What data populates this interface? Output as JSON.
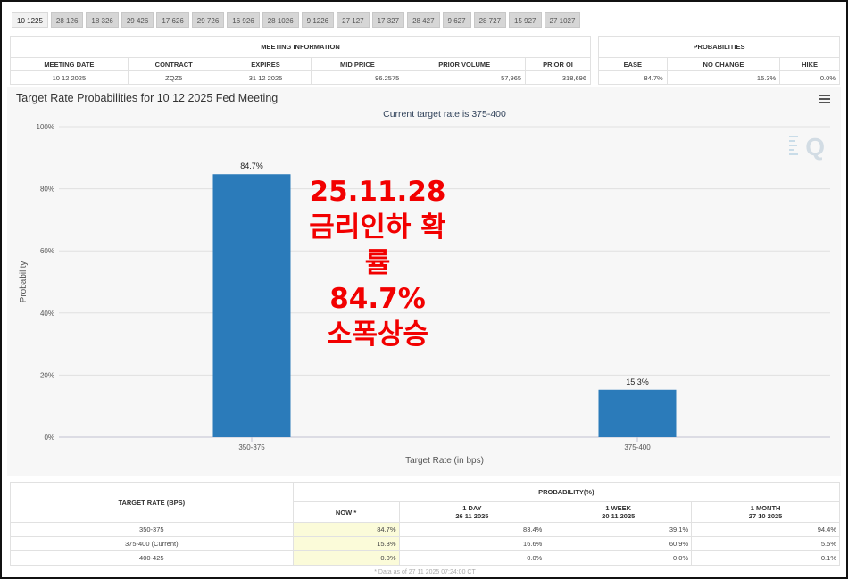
{
  "tabs": [
    "10 1225",
    "28 126",
    "18 326",
    "29 426",
    "17 626",
    "29 726",
    "16 926",
    "28 1026",
    "9 1226",
    "27 127",
    "17 327",
    "28 427",
    "9 627",
    "28 727",
    "15 927",
    "27 1027"
  ],
  "active_tab": "10 1225",
  "meeting": {
    "header": "MEETING INFORMATION",
    "columns": [
      "MEETING DATE",
      "CONTRACT",
      "EXPIRES",
      "MID PRICE",
      "PRIOR VOLUME",
      "PRIOR OI"
    ],
    "row": [
      "10 12 2025",
      "ZQZ5",
      "31 12 2025",
      "96.2575",
      "57,965",
      "318,696"
    ]
  },
  "probabilities": {
    "header": "PROBABILITIES",
    "columns": [
      "EASE",
      "NO CHANGE",
      "HIKE"
    ],
    "row": [
      "84.7%",
      "15.3%",
      "0.0%"
    ]
  },
  "chart": {
    "title": "Target Rate Probabilities for 10 12 2025 Fed Meeting",
    "subtitle": "Current target rate is 375-400",
    "watermark": "Q"
  },
  "chart_data": {
    "type": "bar",
    "title": "Target Rate Probabilities for 10 12 2025 Fed Meeting",
    "subtitle": "Current target rate is 375-400",
    "categories": [
      "350-375",
      "375-400"
    ],
    "values": [
      84.7,
      15.3
    ],
    "value_labels": [
      "84.7%",
      "15.3%"
    ],
    "xlabel": "Target Rate (in bps)",
    "ylabel": "Probability",
    "ylim": [
      0,
      100
    ],
    "yticks": [
      "0%",
      "20%",
      "40%",
      "60%",
      "80%",
      "100%"
    ],
    "ytick_values": [
      0,
      20,
      40,
      60,
      80,
      100
    ],
    "bar_color": "#2b7bba",
    "grid": true
  },
  "overlay": [
    "25.11.28",
    "금리인하 확률",
    "84.7%",
    "소폭상승"
  ],
  "bottom": {
    "target_header": "TARGET RATE (BPS)",
    "prob_header": "PROBABILITY(%)",
    "cols": [
      {
        "label": "NOW *",
        "date": ""
      },
      {
        "label": "1 DAY",
        "date": "26 11 2025"
      },
      {
        "label": "1 WEEK",
        "date": "20 11 2025"
      },
      {
        "label": "1 MONTH",
        "date": "27 10 2025"
      }
    ],
    "rows": [
      {
        "rate": "350-375",
        "values": [
          "84.7%",
          "83.4%",
          "39.1%",
          "94.4%"
        ]
      },
      {
        "rate": "375-400 (Current)",
        "values": [
          "15.3%",
          "16.6%",
          "60.9%",
          "5.5%"
        ]
      },
      {
        "rate": "400-425",
        "values": [
          "0.0%",
          "0.0%",
          "0.0%",
          "0.1%"
        ]
      }
    ],
    "footnote": "* Data as of 27 11 2025 07:24:00 CT"
  }
}
